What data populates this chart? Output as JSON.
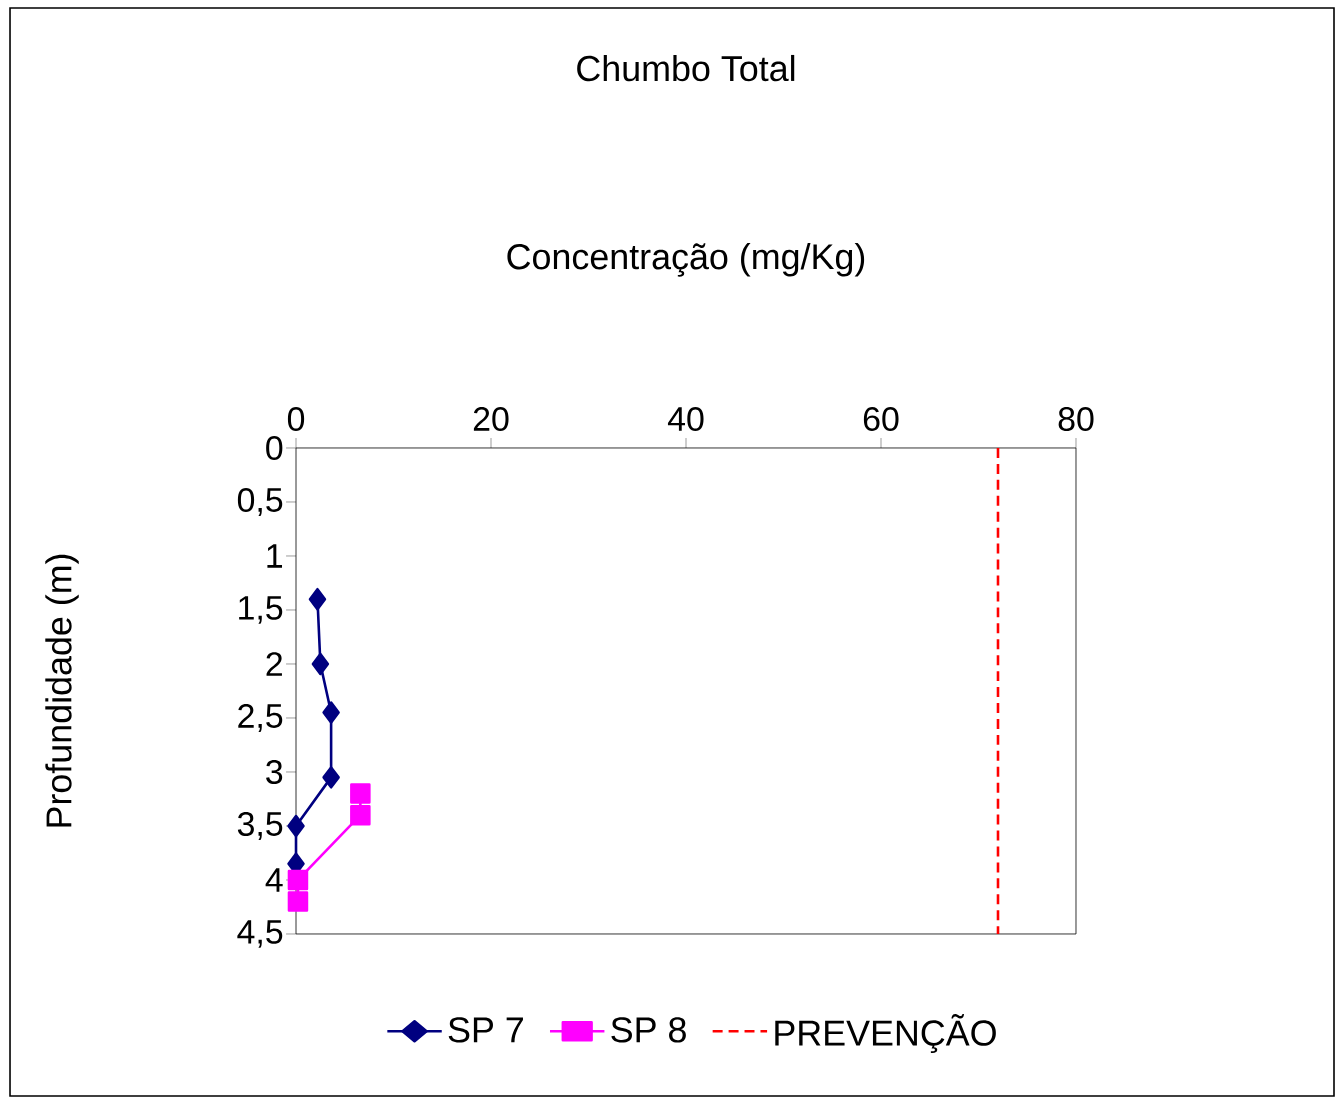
{
  "chart_data": {
    "type": "line",
    "title": "Chumbo Total",
    "xlabel": "Concentração (mg/Kg)",
    "ylabel": "Profundidade (m)",
    "xlim": [
      0,
      80
    ],
    "xticks": [
      0,
      20,
      40,
      60,
      80
    ],
    "ylim": [
      4.5,
      0
    ],
    "yticks": [
      0,
      {
        "value": 0.5,
        "label": "0,5"
      },
      1,
      {
        "value": 1.5,
        "label": "1,5"
      },
      2,
      {
        "value": 2.5,
        "label": "2,5"
      },
      3,
      {
        "value": 3.5,
        "label": "3,5"
      },
      4,
      {
        "value": 4.5,
        "label": "4,5"
      }
    ],
    "legend": "bottom",
    "series": [
      {
        "name": "SP 7",
        "color": "#000080",
        "marker": "diamond",
        "line_style": "solid",
        "x": [
          2.2,
          2.5,
          3.6,
          3.6,
          0,
          0
        ],
        "values": [
          1.4,
          2.0,
          2.45,
          3.05,
          3.5,
          3.85
        ]
      },
      {
        "name": "SP 8",
        "color": "#ff00ff",
        "marker": "square",
        "line_style": "solid",
        "x": [
          6.6,
          6.6,
          0.2,
          0.2
        ],
        "values": [
          3.2,
          3.4,
          4.0,
          4.2
        ]
      },
      {
        "name": "PREVENÇÃO",
        "color": "#ff0000",
        "marker": "none",
        "line_style": "dashed",
        "x": [
          72,
          72
        ],
        "values": [
          0,
          4.5
        ]
      }
    ]
  }
}
